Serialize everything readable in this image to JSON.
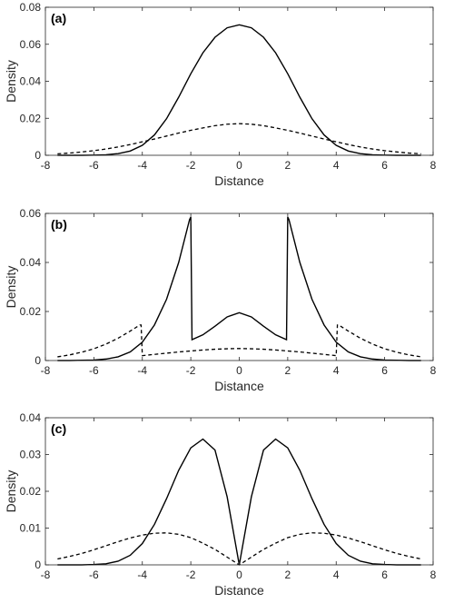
{
  "chart_data": [
    {
      "type": "line",
      "panel_label": "(a)",
      "xlabel": "Distance",
      "ylabel": "Density",
      "xlim": [
        -8,
        8
      ],
      "ylim": [
        0,
        0.08
      ],
      "xticks": [
        "-8",
        "-6",
        "-4",
        "-2",
        "0",
        "2",
        "4",
        "6",
        "8"
      ],
      "yticks": [
        "0",
        "0.02",
        "0.04",
        "0.06",
        "0.08"
      ],
      "grid": false,
      "series": [
        {
          "style": "solid",
          "x": [
            -7.5,
            -7,
            -6.5,
            -6,
            -5.5,
            -5,
            -4.5,
            -4,
            -3.5,
            -3,
            -2.5,
            -2,
            -1.5,
            -1,
            -0.5,
            0,
            0.5,
            1,
            1.5,
            2,
            2.5,
            3,
            3.5,
            4,
            4.5,
            5,
            5.5,
            6,
            6.5,
            7,
            7.5
          ],
          "y": [
            0,
            0,
            0,
            0.0001,
            0.0003,
            0.0009,
            0.0023,
            0.0054,
            0.011,
            0.0198,
            0.0314,
            0.0441,
            0.0554,
            0.0638,
            0.0689,
            0.0705,
            0.0689,
            0.0638,
            0.0554,
            0.0441,
            0.0314,
            0.0198,
            0.011,
            0.0054,
            0.0023,
            0.0009,
            0.0003,
            0.0001,
            0,
            0,
            0
          ]
        },
        {
          "style": "dashed",
          "x": [
            -7.5,
            -7,
            -6.5,
            -6,
            -5.5,
            -5,
            -4.5,
            -4,
            -3.5,
            -3,
            -2.5,
            -2,
            -1.5,
            -1,
            -0.5,
            0,
            0.5,
            1,
            1.5,
            2,
            2.5,
            3,
            3.5,
            4,
            4.5,
            5,
            5.5,
            6,
            6.5,
            7,
            7.5
          ],
          "y": [
            0.0008,
            0.0012,
            0.0018,
            0.0025,
            0.0034,
            0.0045,
            0.0058,
            0.0073,
            0.0088,
            0.0104,
            0.012,
            0.0135,
            0.0148,
            0.016,
            0.0168,
            0.0171,
            0.0168,
            0.016,
            0.0148,
            0.0135,
            0.012,
            0.0104,
            0.0088,
            0.0073,
            0.0058,
            0.0045,
            0.0034,
            0.0025,
            0.0018,
            0.0012,
            0.0008
          ]
        }
      ]
    },
    {
      "type": "line",
      "panel_label": "(b)",
      "xlabel": "Distance",
      "ylabel": "Density",
      "xlim": [
        -8,
        8
      ],
      "ylim": [
        0,
        0.06
      ],
      "xticks": [
        "-8",
        "-6",
        "-4",
        "-2",
        "0",
        "2",
        "4",
        "6",
        "8"
      ],
      "yticks": [
        "0",
        "0.02",
        "0.04",
        "0.06"
      ],
      "grid": false,
      "series": [
        {
          "style": "solid",
          "x": [
            -7.5,
            -7,
            -6.5,
            -6,
            -5.5,
            -5,
            -4.5,
            -4,
            -3.5,
            -3,
            -2.5,
            -2.05,
            -2,
            -1.95,
            -1.5,
            -1,
            -0.5,
            0,
            0.5,
            1,
            1.5,
            1.95,
            2,
            2.05,
            2.5,
            3,
            3.5,
            4,
            4.5,
            5,
            5.5,
            6,
            6.5,
            7,
            7.5
          ],
          "y": [
            0,
            0,
            0.0001,
            0.0002,
            0.0006,
            0.0015,
            0.0035,
            0.0075,
            0.0145,
            0.025,
            0.04,
            0.0575,
            0.0585,
            0.0085,
            0.0105,
            0.014,
            0.0178,
            0.0195,
            0.0178,
            0.014,
            0.0105,
            0.0085,
            0.0585,
            0.0575,
            0.04,
            0.025,
            0.0145,
            0.0075,
            0.0035,
            0.0015,
            0.0006,
            0.0002,
            0.0001,
            0,
            0
          ]
        },
        {
          "style": "dashed",
          "x": [
            -7.5,
            -7,
            -6.5,
            -6,
            -5.5,
            -5,
            -4.5,
            -4.1,
            -4.05,
            -4,
            -3.5,
            -3,
            -2.5,
            -2,
            -1.5,
            -1,
            -0.5,
            0,
            0.5,
            1,
            1.5,
            2,
            2.5,
            3,
            3.5,
            4,
            4.05,
            4.1,
            4.5,
            5,
            5.5,
            6,
            6.5,
            7,
            7.5
          ],
          "y": [
            0.0015,
            0.0023,
            0.0034,
            0.0048,
            0.0067,
            0.0091,
            0.012,
            0.0145,
            0.0145,
            0.002,
            0.0025,
            0.003,
            0.0035,
            0.0039,
            0.0043,
            0.0046,
            0.0048,
            0.0049,
            0.0048,
            0.0046,
            0.0043,
            0.0039,
            0.0035,
            0.003,
            0.0025,
            0.002,
            0.0145,
            0.0145,
            0.012,
            0.0091,
            0.0067,
            0.0048,
            0.0034,
            0.0023,
            0.0015
          ]
        }
      ]
    },
    {
      "type": "line",
      "panel_label": "(c)",
      "xlabel": "Distance",
      "ylabel": "Density",
      "xlim": [
        -8,
        8
      ],
      "ylim": [
        0,
        0.04
      ],
      "xticks": [
        "-8",
        "-6",
        "-4",
        "-2",
        "0",
        "2",
        "4",
        "6",
        "8"
      ],
      "yticks": [
        "0",
        "0.01",
        "0.02",
        "0.03",
        "0.04"
      ],
      "grid": false,
      "series": [
        {
          "style": "solid",
          "x": [
            -7.5,
            -7,
            -6.5,
            -6,
            -5.5,
            -5,
            -4.5,
            -4,
            -3.5,
            -3,
            -2.5,
            -2,
            -1.5,
            -1,
            -0.5,
            0,
            0.5,
            1,
            1.5,
            2,
            2.5,
            3,
            3.5,
            4,
            4.5,
            5,
            5.5,
            6,
            6.5,
            7,
            7.5
          ],
          "y": [
            0,
            0,
            0,
            0.0001,
            0.0003,
            0.001,
            0.0026,
            0.0058,
            0.011,
            0.018,
            0.0257,
            0.0318,
            0.0342,
            0.0312,
            0.0185,
            0,
            0.0185,
            0.0312,
            0.0342,
            0.0318,
            0.0257,
            0.018,
            0.011,
            0.0058,
            0.0026,
            0.001,
            0.0003,
            0.0001,
            0,
            0,
            0
          ]
        },
        {
          "style": "dashed",
          "x": [
            -7.5,
            -7,
            -6.5,
            -6,
            -5.5,
            -5,
            -4.5,
            -4,
            -3.5,
            -3,
            -2.5,
            -2,
            -1.5,
            -1,
            -0.5,
            0,
            0.5,
            1,
            1.5,
            2,
            2.5,
            3,
            3.5,
            4,
            4.5,
            5,
            5.5,
            6,
            6.5,
            7,
            7.5
          ],
          "y": [
            0.0016,
            0.0023,
            0.0031,
            0.0041,
            0.0052,
            0.0063,
            0.0073,
            0.0081,
            0.0086,
            0.0087,
            0.0083,
            0.0074,
            0.0059,
            0.0042,
            0.0021,
            0,
            0.0021,
            0.0042,
            0.0059,
            0.0074,
            0.0083,
            0.0087,
            0.0086,
            0.0081,
            0.0073,
            0.0063,
            0.0052,
            0.0041,
            0.0031,
            0.0023,
            0.0016
          ]
        }
      ]
    }
  ]
}
